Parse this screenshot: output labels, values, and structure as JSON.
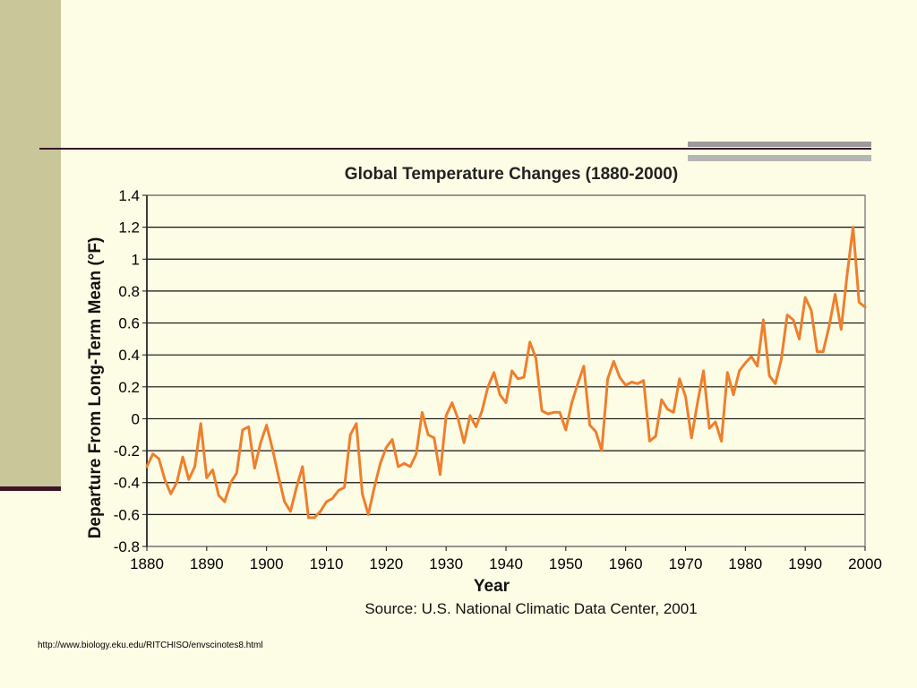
{
  "slide": {
    "source_url": "http://www.biology.eku.edu/RITCHISO/envscinotes8.html",
    "colors": {
      "background": "#fdfce5",
      "sidebar": "#c9c79a",
      "rule": "#3c1426",
      "line": "#ee7f2d"
    }
  },
  "chart_data": {
    "type": "line",
    "title": "Global Temperature Changes (1880-2000)",
    "xlabel": "Year",
    "ylabel": "Departure From Long-Term Mean (°F)",
    "source": "Source: U.S. National Climatic Data Center, 2001",
    "xlim": [
      1880,
      2000
    ],
    "ylim": [
      -0.8,
      1.4
    ],
    "x_ticks": [
      "1880",
      "1890",
      "1900",
      "1910",
      "1920",
      "1930",
      "1940",
      "1950",
      "1960",
      "1970",
      "1980",
      "1990",
      "2000"
    ],
    "y_ticks": [
      "1.4",
      "1.2",
      "1",
      "0.8",
      "0.6",
      "0.4",
      "0.2",
      "0",
      "-0.2",
      "-0.4",
      "-0.6",
      "-0.8"
    ],
    "grid": true,
    "series": [
      {
        "color": "#ee7f2d",
        "x": [
          1880,
          1881,
          1882,
          1883,
          1884,
          1885,
          1886,
          1887,
          1888,
          1889,
          1890,
          1891,
          1892,
          1893,
          1894,
          1895,
          1896,
          1897,
          1898,
          1899,
          1900,
          1901,
          1902,
          1903,
          1904,
          1905,
          1906,
          1907,
          1908,
          1909,
          1910,
          1911,
          1912,
          1913,
          1914,
          1915,
          1916,
          1917,
          1918,
          1919,
          1920,
          1921,
          1922,
          1923,
          1924,
          1925,
          1926,
          1927,
          1928,
          1929,
          1930,
          1931,
          1932,
          1933,
          1934,
          1935,
          1936,
          1937,
          1938,
          1939,
          1940,
          1941,
          1942,
          1943,
          1944,
          1945,
          1946,
          1947,
          1948,
          1949,
          1950,
          1951,
          1952,
          1953,
          1954,
          1955,
          1956,
          1957,
          1958,
          1959,
          1960,
          1961,
          1962,
          1963,
          1964,
          1965,
          1966,
          1967,
          1968,
          1969,
          1970,
          1971,
          1972,
          1973,
          1974,
          1975,
          1976,
          1977,
          1978,
          1979,
          1980,
          1981,
          1982,
          1983,
          1984,
          1985,
          1986,
          1987,
          1988,
          1989,
          1990,
          1991,
          1992,
          1993,
          1994,
          1995,
          1996,
          1997,
          1998,
          1999,
          2000
        ],
        "y": [
          -0.3,
          -0.22,
          -0.25,
          -0.38,
          -0.47,
          -0.4,
          -0.24,
          -0.38,
          -0.3,
          -0.03,
          -0.37,
          -0.32,
          -0.48,
          -0.52,
          -0.4,
          -0.34,
          -0.07,
          -0.05,
          -0.31,
          -0.15,
          -0.04,
          -0.19,
          -0.36,
          -0.52,
          -0.58,
          -0.43,
          -0.3,
          -0.62,
          -0.62,
          -0.58,
          -0.52,
          -0.5,
          -0.45,
          -0.43,
          -0.1,
          -0.03,
          -0.47,
          -0.6,
          -0.43,
          -0.28,
          -0.18,
          -0.13,
          -0.3,
          -0.28,
          -0.3,
          -0.22,
          0.04,
          -0.1,
          -0.12,
          -0.35,
          0.02,
          0.1,
          0.0,
          -0.15,
          0.02,
          -0.05,
          0.05,
          0.2,
          0.29,
          0.15,
          0.1,
          0.3,
          0.25,
          0.26,
          0.48,
          0.38,
          0.05,
          0.03,
          0.04,
          0.04,
          -0.07,
          0.1,
          0.22,
          0.33,
          -0.04,
          -0.08,
          -0.2,
          0.25,
          0.36,
          0.26,
          0.21,
          0.23,
          0.22,
          0.24,
          -0.14,
          -0.11,
          0.12,
          0.06,
          0.04,
          0.25,
          0.14,
          -0.12,
          0.1,
          0.3,
          -0.06,
          -0.02,
          -0.14,
          0.29,
          0.15,
          0.3,
          0.35,
          0.39,
          0.33,
          0.62,
          0.27,
          0.22,
          0.37,
          0.65,
          0.62,
          0.5,
          0.76,
          0.68,
          0.42,
          0.42,
          0.58,
          0.78,
          0.56,
          0.9,
          1.2,
          0.73,
          0.7
        ]
      }
    ]
  }
}
